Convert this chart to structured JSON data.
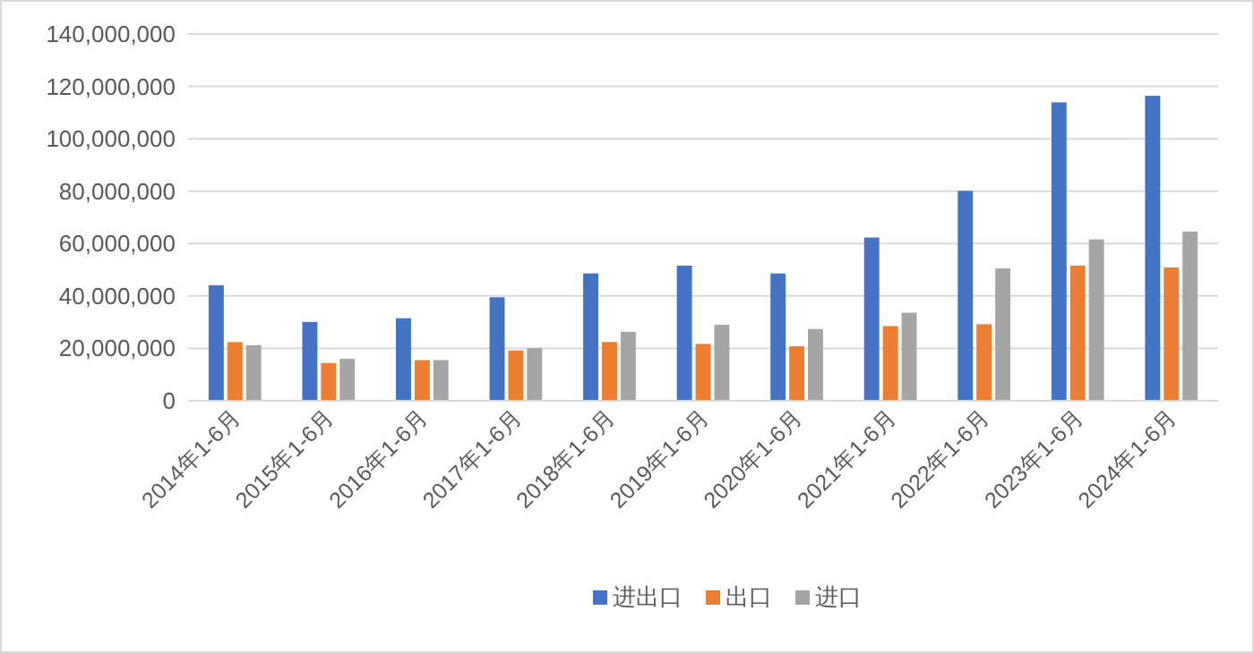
{
  "chart_data": {
    "type": "bar",
    "categories": [
      "2014年1-6月",
      "2015年1-6月",
      "2016年1-6月",
      "2017年1-6月",
      "2018年1-6月",
      "2019年1-6月",
      "2020年1-6月",
      "2021年1-6月",
      "2022年1-6月",
      "2023年1-6月",
      "2024年1-6月"
    ],
    "series": [
      {
        "name": "进出口",
        "color": "#4472c4",
        "values": [
          44100000,
          30100000,
          31500000,
          39500000,
          48600000,
          51600000,
          48600000,
          62300000,
          80100000,
          113900000,
          116400000
        ]
      },
      {
        "name": "出口",
        "color": "#ed7d31",
        "values": [
          22400000,
          14400000,
          15500000,
          19200000,
          22400000,
          21700000,
          20800000,
          28500000,
          29200000,
          51600000,
          50900000
        ]
      },
      {
        "name": "进口",
        "color": "#a5a5a5",
        "values": [
          21200000,
          16000000,
          15500000,
          20100000,
          26300000,
          29000000,
          27400000,
          33600000,
          50500000,
          61600000,
          64600000
        ]
      }
    ],
    "ylim": [
      0,
      140000000
    ],
    "yticks": [
      {
        "value": 0,
        "label": "0"
      },
      {
        "value": 20000000,
        "label": "20,000,000"
      },
      {
        "value": 40000000,
        "label": "40,000,000"
      },
      {
        "value": 60000000,
        "label": "60,000,000"
      },
      {
        "value": 80000000,
        "label": "80,000,000"
      },
      {
        "value": 100000000,
        "label": "100,000,000"
      },
      {
        "value": 120000000,
        "label": "120,000,000"
      },
      {
        "value": 140000000,
        "label": "140,000,000"
      }
    ],
    "grid": "y",
    "legend": "bottom"
  }
}
